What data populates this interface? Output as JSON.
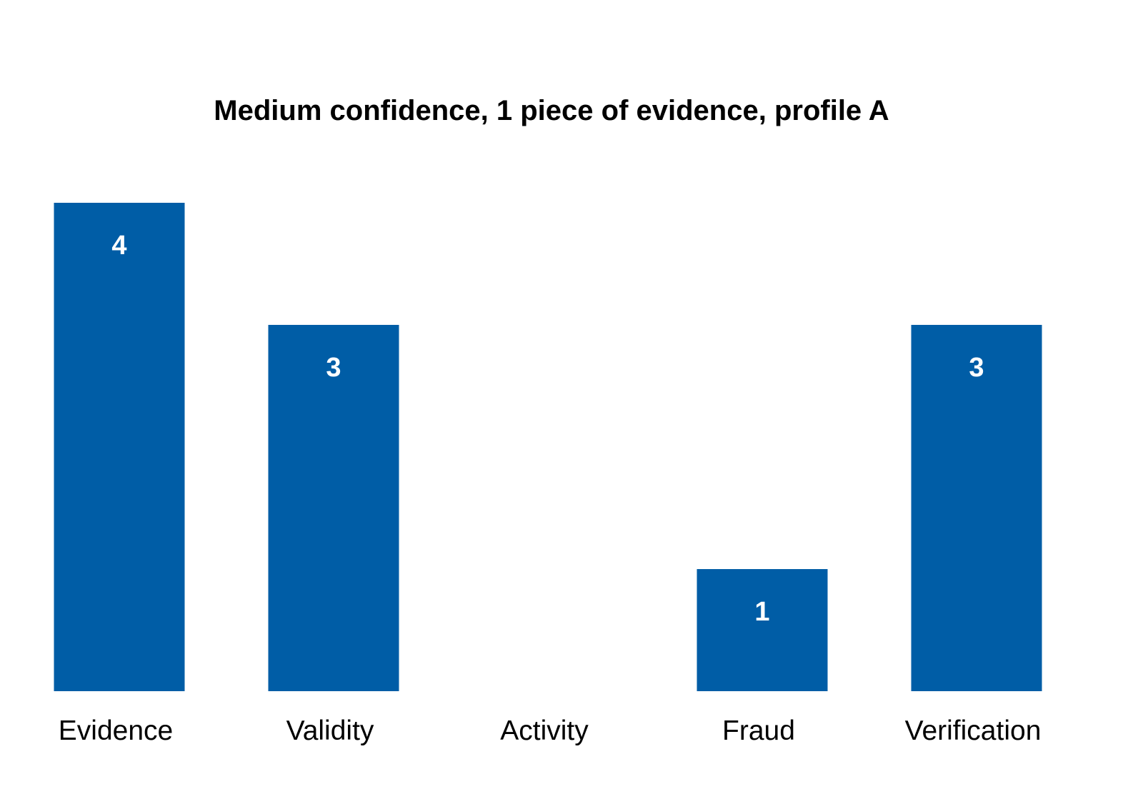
{
  "chart_data": {
    "type": "bar",
    "title": "Medium confidence, 1 piece of evidence, profile A",
    "xlabel": "",
    "ylabel": "",
    "categories": [
      "Evidence",
      "Validity",
      "Activity",
      "Fraud",
      "Verification"
    ],
    "values": [
      4,
      3,
      0,
      1,
      3
    ],
    "data_labels": [
      "4",
      "3",
      "",
      "1",
      "3"
    ],
    "ylim": [
      0,
      4
    ],
    "grid": false,
    "legend": "none",
    "bar_color": "#005DA6",
    "label_color": "#FFFFFF"
  }
}
